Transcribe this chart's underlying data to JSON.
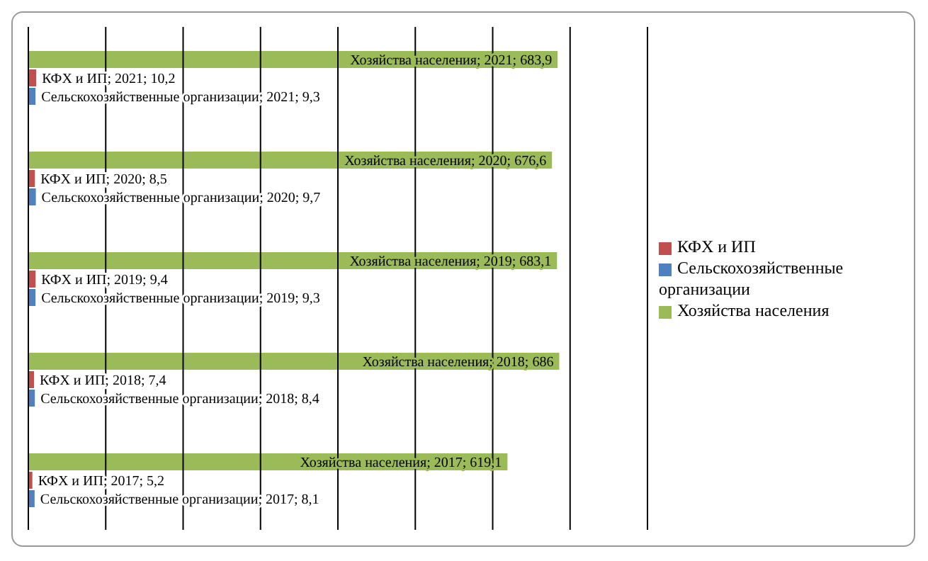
{
  "chart_data": {
    "type": "bar",
    "orientation": "horizontal",
    "categories": [
      null,
      null,
      null,
      null,
      null
    ],
    "series": [
      {
        "name": "Хозяйства населения",
        "color": "#9bbb59",
        "values": [
          683.9,
          676.6,
          683.1,
          686,
          619.1
        ],
        "value_labels": [
          "Хозяйства населения; 2021; 683,9",
          "Хозяйства населения; 2020; 676,6",
          "Хозяйства населения; 2019; 683,1",
          "Хозяйства населения; 2018; 686",
          "Хозяйства населения; 2017; 619,1"
        ]
      },
      {
        "name": "КФХ и ИП",
        "color": "#c0504d",
        "values": [
          10.2,
          8.5,
          9.4,
          7.4,
          5.2
        ],
        "value_labels": [
          "КФХ и ИП; 2021; 10,2",
          "КФХ и ИП; 2020; 8,5",
          "КФХ и ИП; 2019; 9,4",
          "КФХ и ИП; 2018; 7,4",
          "КФХ и ИП; 2017; 5,2"
        ]
      },
      {
        "name": "Сельскохозяйственные организации",
        "color": "#4f81bd",
        "values": [
          9.3,
          9.7,
          9.3,
          8.4,
          8.1
        ],
        "value_labels": [
          "Сельскохозяйственные организации; 2021; 9,3",
          "Сельскохозяйственные организации; 2020; 9,7",
          "Сельскохозяйственные организации; 2019; 9,3",
          "Сельскохозяйственные организации; 2018; 8,4",
          "Сельскохозяйственные организации; 2017; 8,1"
        ]
      }
    ],
    "xlim": [
      0,
      800
    ],
    "xticks": [
      0,
      100,
      200,
      300,
      400,
      500,
      600,
      700,
      800
    ],
    "tick_labels": false,
    "grid": "x",
    "legend": "right"
  }
}
